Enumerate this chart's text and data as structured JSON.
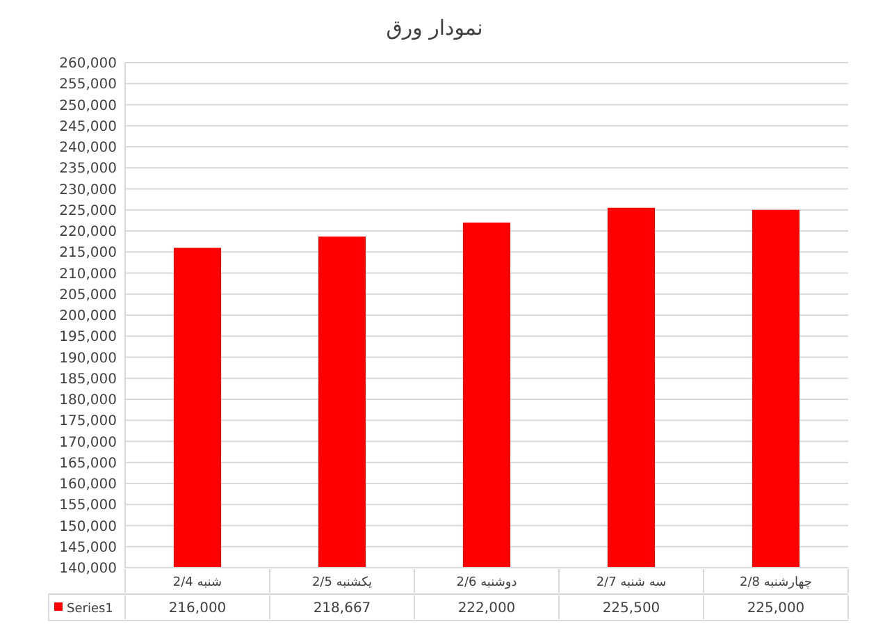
{
  "chart_data": {
    "type": "bar",
    "title": "نمودار ورق",
    "categories": [
      "شنبه 2/4",
      "یکشنبه 2/5",
      "دوشنبه 2/6",
      "سه شنبه 2/7",
      "چهارشنبه 2/8"
    ],
    "series": [
      {
        "name": "Series1",
        "color": "#ff0000",
        "values": [
          216000,
          218667,
          222000,
          225500,
          225000
        ],
        "value_labels": [
          "216,000",
          "218,667",
          "222,000",
          "225,500",
          "225,000"
        ]
      }
    ],
    "ylim": [
      140000,
      260000
    ],
    "yticks": [
      {
        "value": 140000,
        "label": "140,000"
      },
      {
        "value": 145000,
        "label": "145,000"
      },
      {
        "value": 150000,
        "label": "150,000"
      },
      {
        "value": 155000,
        "label": "155,000"
      },
      {
        "value": 160000,
        "label": "160,000"
      },
      {
        "value": 165000,
        "label": "165,000"
      },
      {
        "value": 170000,
        "label": "170,000"
      },
      {
        "value": 175000,
        "label": "175,000"
      },
      {
        "value": 180000,
        "label": "180,000"
      },
      {
        "value": 185000,
        "label": "185,000"
      },
      {
        "value": 190000,
        "label": "190,000"
      },
      {
        "value": 195000,
        "label": "195,000"
      },
      {
        "value": 200000,
        "label": "200,000"
      },
      {
        "value": 205000,
        "label": "205,000"
      },
      {
        "value": 210000,
        "label": "210,000"
      },
      {
        "value": 215000,
        "label": "215,000"
      },
      {
        "value": 220000,
        "label": "220,000"
      },
      {
        "value": 225000,
        "label": "225,000"
      },
      {
        "value": 230000,
        "label": "230,000"
      },
      {
        "value": 235000,
        "label": "235,000"
      },
      {
        "value": 240000,
        "label": "240,000"
      },
      {
        "value": 245000,
        "label": "245,000"
      },
      {
        "value": 250000,
        "label": "250,000"
      },
      {
        "value": 255000,
        "label": "255,000"
      },
      {
        "value": 260000,
        "label": "260,000"
      }
    ],
    "grid": "y",
    "legend": "bottom"
  }
}
